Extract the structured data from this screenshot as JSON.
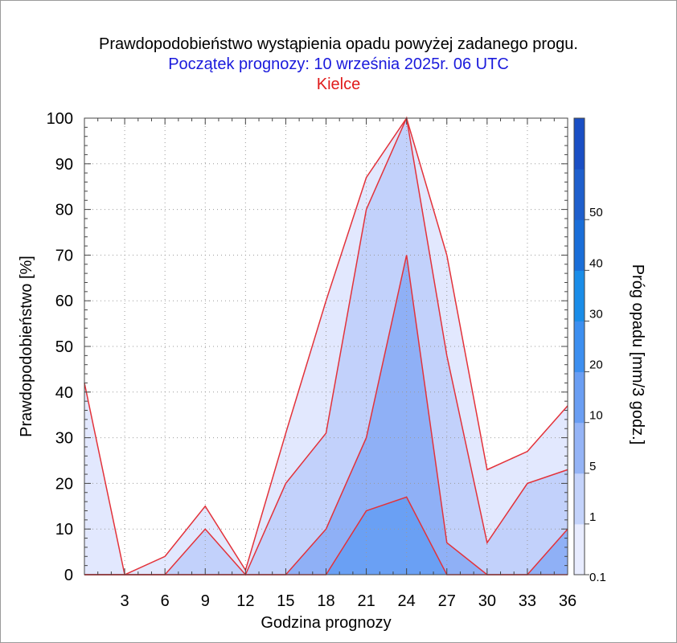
{
  "title": "Prawdopodobieństwo wystąpienia opadu powyżej zadanego progu.",
  "subtitle": "Początek prognozy: 10 września 2025r. 06 UTC",
  "location": "Kielce",
  "chart_data": {
    "type": "area",
    "xlabel": "Godzina prognozy",
    "ylabel": "Prawdopodobieństwo [%]",
    "colorbar_label": "Próg opadu [mm/3 godz.]",
    "xlim": [
      0,
      36
    ],
    "ylim": [
      0,
      100
    ],
    "x": [
      0,
      3,
      6,
      9,
      12,
      15,
      18,
      21,
      24,
      27,
      30,
      33,
      36
    ],
    "x_tick_labels": [
      "3",
      "6",
      "9",
      "12",
      "15",
      "18",
      "21",
      "24",
      "27",
      "30",
      "33",
      "36"
    ],
    "x_tick_values": [
      3,
      6,
      9,
      12,
      15,
      18,
      21,
      24,
      27,
      30,
      33,
      36
    ],
    "y_tick_labels": [
      "0",
      "10",
      "20",
      "30",
      "40",
      "50",
      "60",
      "70",
      "80",
      "90",
      "100"
    ],
    "series": [
      {
        "name": "0.1",
        "color": "#e2e8fe",
        "values": [
          42,
          0,
          4,
          15,
          1,
          31,
          60,
          87,
          100,
          70,
          23,
          27,
          37
        ]
      },
      {
        "name": "1",
        "color": "#c2d1fb",
        "values": [
          0,
          0,
          0,
          10,
          0,
          20,
          31,
          80,
          100,
          48,
          7,
          20,
          23
        ]
      },
      {
        "name": "5",
        "color": "#8fb0f6",
        "values": [
          0,
          0,
          0,
          0,
          0,
          0,
          10,
          30,
          70,
          7,
          0,
          0,
          10
        ]
      },
      {
        "name": "10",
        "color": "#6aa0f4",
        "values": [
          0,
          0,
          0,
          0,
          0,
          0,
          0,
          14,
          17,
          0,
          0,
          0,
          0
        ]
      }
    ],
    "colorbar": {
      "tick_labels": [
        "0.1",
        "1",
        "5",
        "10",
        "20",
        "30",
        "40",
        "50"
      ],
      "bands": [
        "#e8ecff",
        "#c4d3fb",
        "#95b4f6",
        "#6a9ef3",
        "#3d8ff0",
        "#1a8de8",
        "#1a6ed8",
        "#1f5fcc",
        "#1a4fc4"
      ]
    },
    "grid": true,
    "line_color": "#e3323a"
  }
}
